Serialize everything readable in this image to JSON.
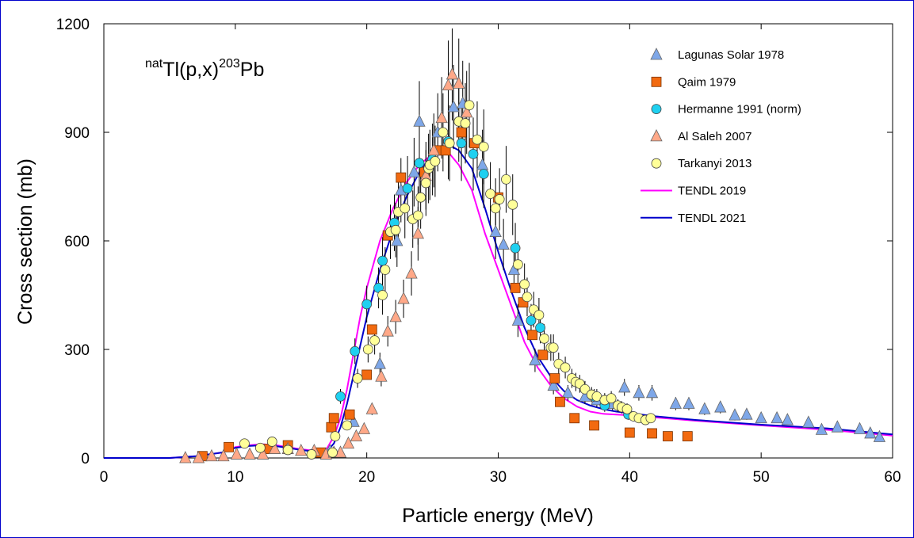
{
  "chart_data": {
    "type": "scatter",
    "title": "natTl(p,x)203Pb",
    "reaction": {
      "prefix": "nat",
      "target": "Tl(p,x)",
      "mass": "203",
      "product": "Pb"
    },
    "xlabel": "Particle energy (MeV)",
    "ylabel": "Cross section (mb)",
    "xlim": [
      0,
      60
    ],
    "ylim": [
      0,
      1200
    ],
    "xticks": [
      0,
      10,
      20,
      30,
      40,
      50,
      60
    ],
    "yticks": [
      0,
      300,
      600,
      900,
      1200
    ],
    "legend_position": "top-right",
    "colors": {
      "lagunas": "#7ea7e8",
      "qaim": "#f26a10",
      "hermanne": "#1fd0f0",
      "alsaleh": "#ffa888",
      "tarkanyi": "#ffff99",
      "tendl2019": "#ff00ff",
      "tendl2021": "#0000cc",
      "frame": "#0000cc"
    },
    "series": [
      {
        "name": "Lagunas Solar 1978",
        "marker": "triangle",
        "colorKey": "lagunas",
        "points": [
          [
            17.2,
            20
          ],
          [
            19.0,
            100
          ],
          [
            21.0,
            260
          ],
          [
            22.3,
            600
          ],
          [
            22.6,
            740
          ],
          [
            23.6,
            790
          ],
          [
            24.0,
            930
          ],
          [
            25.4,
            900
          ],
          [
            26.6,
            970
          ],
          [
            27.3,
            980
          ],
          [
            28.8,
            810
          ],
          [
            29.8,
            625
          ],
          [
            30.4,
            590
          ],
          [
            31.2,
            520
          ],
          [
            31.5,
            380
          ],
          [
            32.8,
            270
          ],
          [
            34.2,
            200
          ],
          [
            35.3,
            180
          ],
          [
            36.6,
            170
          ],
          [
            37.5,
            160
          ],
          [
            38.7,
            150
          ],
          [
            39.6,
            195
          ],
          [
            40.7,
            180
          ],
          [
            41.7,
            180
          ],
          [
            43.5,
            150
          ],
          [
            44.5,
            150
          ],
          [
            45.7,
            135
          ],
          [
            46.9,
            140
          ],
          [
            48.0,
            118
          ],
          [
            48.9,
            120
          ],
          [
            50.0,
            110
          ],
          [
            51.2,
            110
          ],
          [
            52.0,
            105
          ],
          [
            53.6,
            98
          ],
          [
            54.6,
            78
          ],
          [
            55.8,
            85
          ],
          [
            57.5,
            80
          ],
          [
            58.3,
            68
          ],
          [
            59.0,
            58
          ]
        ]
      },
      {
        "name": "Qaim 1979",
        "marker": "square",
        "colorKey": "qaim",
        "points": [
          [
            7.5,
            5
          ],
          [
            9.5,
            30
          ],
          [
            12.5,
            25
          ],
          [
            14.0,
            35
          ],
          [
            16.5,
            15
          ],
          [
            17.3,
            85
          ],
          [
            17.5,
            110
          ],
          [
            18.7,
            120
          ],
          [
            20.0,
            230
          ],
          [
            20.4,
            355
          ],
          [
            21.6,
            615
          ],
          [
            22.6,
            775
          ],
          [
            24.4,
            790
          ],
          [
            25.4,
            850
          ],
          [
            26.0,
            850
          ],
          [
            27.2,
            900
          ],
          [
            28.2,
            870
          ],
          [
            30.0,
            720
          ],
          [
            31.3,
            470
          ],
          [
            31.9,
            430
          ],
          [
            32.6,
            340
          ],
          [
            33.4,
            285
          ],
          [
            34.3,
            220
          ],
          [
            34.7,
            155
          ],
          [
            35.8,
            110
          ],
          [
            37.3,
            90
          ],
          [
            40.0,
            70
          ],
          [
            41.7,
            68
          ],
          [
            42.9,
            60
          ],
          [
            44.4,
            60
          ]
        ]
      },
      {
        "name": "Hermanne 1991 (norm)",
        "marker": "circle",
        "colorKey": "hermanne",
        "points": [
          [
            18.0,
            170
          ],
          [
            19.1,
            295
          ],
          [
            20.0,
            425
          ],
          [
            20.9,
            470
          ],
          [
            21.2,
            545
          ],
          [
            22.1,
            650
          ],
          [
            23.1,
            745
          ],
          [
            24.0,
            815
          ],
          [
            25.0,
            825
          ],
          [
            26.2,
            875
          ],
          [
            27.2,
            870
          ],
          [
            28.1,
            840
          ],
          [
            28.9,
            785
          ],
          [
            31.3,
            580
          ],
          [
            32.5,
            380
          ],
          [
            33.2,
            360
          ],
          [
            37.3,
            170
          ],
          [
            38.1,
            145
          ],
          [
            39.9,
            120
          ]
        ]
      },
      {
        "name": "Al Saleh 2007",
        "marker": "triangle",
        "colorKey": "alsaleh",
        "points": [
          [
            6.2,
            0
          ],
          [
            7.2,
            0
          ],
          [
            8.2,
            5
          ],
          [
            9.1,
            5
          ],
          [
            10.1,
            10
          ],
          [
            11.1,
            10
          ],
          [
            12.1,
            10
          ],
          [
            13.0,
            25
          ],
          [
            14.0,
            25
          ],
          [
            15.0,
            20
          ],
          [
            16.0,
            20
          ],
          [
            16.9,
            10
          ],
          [
            17.5,
            15
          ],
          [
            18.0,
            15
          ],
          [
            18.6,
            40
          ],
          [
            19.2,
            60
          ],
          [
            19.8,
            80
          ],
          [
            20.4,
            135
          ],
          [
            21.1,
            225
          ],
          [
            21.6,
            350
          ],
          [
            22.2,
            390
          ],
          [
            22.8,
            440
          ],
          [
            23.4,
            510
          ],
          [
            23.9,
            620
          ],
          [
            24.5,
            780
          ],
          [
            25.1,
            850
          ],
          [
            25.7,
            940
          ],
          [
            26.2,
            1030
          ],
          [
            26.5,
            1060
          ],
          [
            27.0,
            1035
          ],
          [
            27.6,
            955
          ]
        ]
      },
      {
        "name": "Tarkanyi 2013",
        "marker": "circle",
        "colorKey": "tarkanyi",
        "points": [
          [
            10.7,
            40
          ],
          [
            11.9,
            28
          ],
          [
            12.8,
            45
          ],
          [
            14.0,
            22
          ],
          [
            15.8,
            10
          ],
          [
            17.4,
            15
          ],
          [
            17.6,
            60
          ],
          [
            18.5,
            90
          ],
          [
            19.3,
            220
          ],
          [
            20.1,
            300
          ],
          [
            20.6,
            325
          ],
          [
            21.2,
            450
          ],
          [
            21.4,
            520
          ],
          [
            21.8,
            625
          ],
          [
            22.2,
            630
          ],
          [
            22.4,
            680
          ],
          [
            22.9,
            690
          ],
          [
            23.5,
            660
          ],
          [
            23.9,
            670
          ],
          [
            24.1,
            720
          ],
          [
            24.5,
            760
          ],
          [
            24.7,
            800
          ],
          [
            24.8,
            810
          ],
          [
            25.2,
            820
          ],
          [
            25.8,
            900
          ],
          [
            26.3,
            870
          ],
          [
            27.0,
            930
          ],
          [
            27.5,
            925
          ],
          [
            27.8,
            975
          ],
          [
            28.4,
            880
          ],
          [
            28.9,
            860
          ],
          [
            29.4,
            730
          ],
          [
            29.8,
            690
          ],
          [
            30.1,
            715
          ],
          [
            30.6,
            770
          ],
          [
            31.1,
            700
          ],
          [
            31.5,
            535
          ],
          [
            32.0,
            480
          ],
          [
            32.2,
            445
          ],
          [
            32.7,
            410
          ],
          [
            33.1,
            395
          ],
          [
            33.5,
            330
          ],
          [
            34.0,
            305
          ],
          [
            34.2,
            305
          ],
          [
            34.6,
            260
          ],
          [
            35.1,
            250
          ],
          [
            35.6,
            220
          ],
          [
            35.9,
            210
          ],
          [
            36.2,
            205
          ],
          [
            36.6,
            190
          ],
          [
            37.1,
            175
          ],
          [
            37.5,
            170
          ],
          [
            38.1,
            160
          ],
          [
            38.6,
            165
          ],
          [
            39.1,
            145
          ],
          [
            39.4,
            140
          ],
          [
            39.8,
            135
          ],
          [
            40.3,
            115
          ],
          [
            40.7,
            110
          ],
          [
            41.2,
            105
          ],
          [
            41.6,
            110
          ]
        ]
      }
    ],
    "curves": [
      {
        "name": "TENDL 2019",
        "colorKey": "tendl2019",
        "points": [
          [
            0,
            0
          ],
          [
            5,
            0
          ],
          [
            7,
            5
          ],
          [
            9,
            15
          ],
          [
            10,
            30
          ],
          [
            11,
            35
          ],
          [
            12,
            38
          ],
          [
            13,
            36
          ],
          [
            14,
            30
          ],
          [
            15,
            24
          ],
          [
            16,
            20
          ],
          [
            16.6,
            20
          ],
          [
            17,
            28
          ],
          [
            17.5,
            60
          ],
          [
            18,
            110
          ],
          [
            18.5,
            190
          ],
          [
            19,
            290
          ],
          [
            19.5,
            390
          ],
          [
            20,
            470
          ],
          [
            21,
            600
          ],
          [
            22,
            690
          ],
          [
            23,
            760
          ],
          [
            24,
            810
          ],
          [
            25,
            840
          ],
          [
            25.6,
            850
          ],
          [
            26.2,
            845
          ],
          [
            27,
            810
          ],
          [
            28,
            740
          ],
          [
            29,
            620
          ],
          [
            30,
            520
          ],
          [
            31,
            420
          ],
          [
            32,
            320
          ],
          [
            33,
            250
          ],
          [
            34,
            200
          ],
          [
            35,
            165
          ],
          [
            36,
            142
          ],
          [
            37,
            128
          ],
          [
            38,
            122
          ],
          [
            39,
            120
          ],
          [
            40,
            118
          ],
          [
            42,
            112
          ],
          [
            45,
            103
          ],
          [
            50,
            90
          ],
          [
            55,
            78
          ],
          [
            60,
            62
          ]
        ]
      },
      {
        "name": "TENDL 2021",
        "colorKey": "tendl2021",
        "points": [
          [
            0,
            0
          ],
          [
            5,
            0
          ],
          [
            7,
            5
          ],
          [
            9,
            15
          ],
          [
            10,
            28
          ],
          [
            11,
            33
          ],
          [
            12,
            35
          ],
          [
            13,
            33
          ],
          [
            14,
            28
          ],
          [
            15,
            22
          ],
          [
            16,
            18
          ],
          [
            16.8,
            16
          ],
          [
            17,
            20
          ],
          [
            17.5,
            40
          ],
          [
            18,
            85
          ],
          [
            18.5,
            150
          ],
          [
            19,
            230
          ],
          [
            19.5,
            310
          ],
          [
            20,
            390
          ],
          [
            21,
            520
          ],
          [
            22,
            630
          ],
          [
            23,
            720
          ],
          [
            24,
            790
          ],
          [
            25,
            840
          ],
          [
            26,
            862
          ],
          [
            26.5,
            860
          ],
          [
            27,
            850
          ],
          [
            28,
            800
          ],
          [
            29,
            690
          ],
          [
            30,
            570
          ],
          [
            31,
            460
          ],
          [
            32,
            360
          ],
          [
            33,
            280
          ],
          [
            34,
            225
          ],
          [
            35,
            185
          ],
          [
            36,
            160
          ],
          [
            37,
            145
          ],
          [
            38,
            135
          ],
          [
            39,
            128
          ],
          [
            40,
            124
          ],
          [
            42,
            115
          ],
          [
            45,
            105
          ],
          [
            50,
            92
          ],
          [
            55,
            82
          ],
          [
            60,
            65
          ]
        ]
      }
    ]
  }
}
